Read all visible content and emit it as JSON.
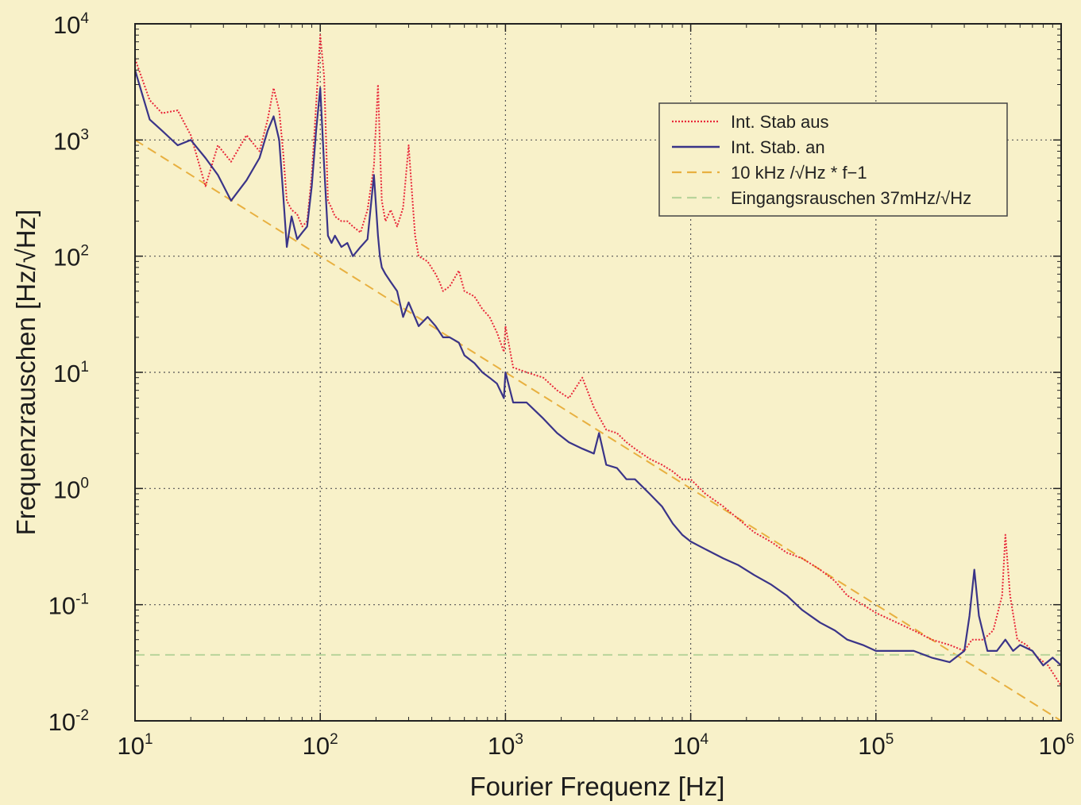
{
  "chart_data": {
    "type": "line",
    "xscale": "log",
    "yscale": "log",
    "xlabel": "Fourier Frequenz [Hz]",
    "ylabel": "Frequenzrauschen [Hz/√Hz]",
    "xlim": [
      10,
      1000000
    ],
    "ylim": [
      0.01,
      10000
    ],
    "grid": true,
    "legend_position": "top-right",
    "x_ticks": [
      {
        "base": "10",
        "exp": "1",
        "value": 10
      },
      {
        "base": "10",
        "exp": "2",
        "value": 100
      },
      {
        "base": "10",
        "exp": "3",
        "value": 1000
      },
      {
        "base": "10",
        "exp": "4",
        "value": 10000
      },
      {
        "base": "10",
        "exp": "5",
        "value": 100000
      },
      {
        "base": "10",
        "exp": "6",
        "value": 1000000
      }
    ],
    "y_ticks": [
      {
        "base": "10",
        "exp": "-2",
        "value": 0.01
      },
      {
        "base": "10",
        "exp": "-1",
        "value": 0.1
      },
      {
        "base": "10",
        "exp": "0",
        "value": 1
      },
      {
        "base": "10",
        "exp": "1",
        "value": 10
      },
      {
        "base": "10",
        "exp": "2",
        "value": 100
      },
      {
        "base": "10",
        "exp": "3",
        "value": 1000
      },
      {
        "base": "10",
        "exp": "4",
        "value": 10000
      }
    ],
    "series": [
      {
        "name": "Int. Stab aus",
        "color": "#e8283a",
        "style": "dotted",
        "x": [
          10,
          12,
          14,
          17,
          20,
          24,
          28,
          33,
          40,
          47,
          52,
          56,
          60,
          63,
          66,
          70,
          75,
          80,
          85,
          90,
          95,
          100,
          105,
          110,
          115,
          120,
          130,
          140,
          150,
          165,
          180,
          195,
          205,
          210,
          215,
          225,
          240,
          260,
          280,
          300,
          315,
          325,
          340,
          380,
          420,
          440,
          460,
          500,
          560,
          600,
          680,
          750,
          820,
          900,
          980,
          1000,
          1100,
          1300,
          1600,
          1900,
          2200,
          2600,
          3000,
          3500,
          4000,
          4500,
          5000,
          6000,
          7000,
          8000,
          9000,
          10000,
          12000,
          15000,
          18000,
          22000,
          27000,
          33000,
          40000,
          50000,
          60000,
          70000,
          85000,
          100000,
          130000,
          160000,
          200000,
          250000,
          300000,
          330000,
          380000,
          430000,
          480000,
          500000,
          530000,
          580000,
          650000,
          750000,
          850000,
          1000000
        ],
        "y": [
          5000,
          2200,
          1700,
          1800,
          1100,
          400,
          900,
          650,
          1100,
          800,
          1500,
          2800,
          1800,
          800,
          300,
          250,
          230,
          180,
          200,
          500,
          2000,
          8000,
          3500,
          300,
          260,
          220,
          200,
          200,
          180,
          160,
          250,
          600,
          3000,
          900,
          300,
          200,
          250,
          180,
          260,
          900,
          300,
          150,
          100,
          90,
          70,
          60,
          50,
          55,
          75,
          50,
          45,
          35,
          30,
          22,
          15,
          25,
          11,
          10,
          9,
          7,
          6,
          9,
          5,
          3.2,
          3,
          2.5,
          2.2,
          1.8,
          1.6,
          1.4,
          1.2,
          1.2,
          0.9,
          0.7,
          0.55,
          0.42,
          0.35,
          0.28,
          0.25,
          0.2,
          0.16,
          0.12,
          0.1,
          0.085,
          0.07,
          0.06,
          0.05,
          0.045,
          0.04,
          0.05,
          0.05,
          0.06,
          0.12,
          0.4,
          0.12,
          0.05,
          0.045,
          0.035,
          0.03,
          0.02
        ]
      },
      {
        "name": "Int. Stab. an",
        "color": "#3a3488",
        "style": "solid",
        "x": [
          10,
          12,
          14,
          17,
          20,
          24,
          28,
          33,
          40,
          47,
          52,
          56,
          60,
          63,
          66,
          70,
          75,
          80,
          85,
          90,
          95,
          100,
          105,
          110,
          115,
          120,
          130,
          140,
          150,
          165,
          180,
          195,
          205,
          210,
          215,
          225,
          240,
          260,
          280,
          300,
          340,
          380,
          420,
          460,
          500,
          560,
          600,
          680,
          750,
          820,
          900,
          980,
          1000,
          1100,
          1300,
          1600,
          1900,
          2200,
          2600,
          3000,
          3200,
          3500,
          4000,
          4500,
          5000,
          6000,
          7000,
          8000,
          9000,
          10000,
          12000,
          15000,
          18000,
          22000,
          27000,
          33000,
          40000,
          50000,
          60000,
          70000,
          85000,
          100000,
          130000,
          160000,
          200000,
          250000,
          300000,
          320000,
          340000,
          360000,
          400000,
          450000,
          500000,
          550000,
          600000,
          700000,
          800000,
          900000,
          1000000
        ],
        "y": [
          4000,
          1500,
          1200,
          900,
          1000,
          700,
          500,
          300,
          450,
          700,
          1200,
          1600,
          1000,
          350,
          120,
          220,
          140,
          160,
          180,
          400,
          1200,
          2800,
          600,
          150,
          130,
          150,
          120,
          130,
          100,
          120,
          140,
          500,
          150,
          100,
          80,
          70,
          60,
          50,
          30,
          40,
          25,
          30,
          25,
          20,
          20,
          18,
          14,
          12,
          10,
          9,
          8,
          6,
          10,
          5.5,
          5.5,
          4,
          3,
          2.5,
          2.2,
          2,
          3,
          1.6,
          1.5,
          1.2,
          1.2,
          0.9,
          0.7,
          0.5,
          0.4,
          0.35,
          0.3,
          0.25,
          0.22,
          0.18,
          0.15,
          0.12,
          0.09,
          0.07,
          0.06,
          0.05,
          0.045,
          0.04,
          0.04,
          0.04,
          0.035,
          0.032,
          0.04,
          0.08,
          0.2,
          0.08,
          0.04,
          0.04,
          0.05,
          0.04,
          0.045,
          0.04,
          0.03,
          0.035,
          0.03
        ]
      },
      {
        "name": "10 kHz /√Hz * f−1",
        "color": "#e8b040",
        "style": "dashed",
        "x": [
          10,
          1000000
        ],
        "y": [
          1000,
          0.01
        ]
      },
      {
        "name": "Eingangsrauschen 37mHz/√Hz",
        "color": "#b8d49a",
        "style": "dashed",
        "x": [
          10,
          1000000
        ],
        "y": [
          0.037,
          0.037
        ]
      }
    ]
  }
}
